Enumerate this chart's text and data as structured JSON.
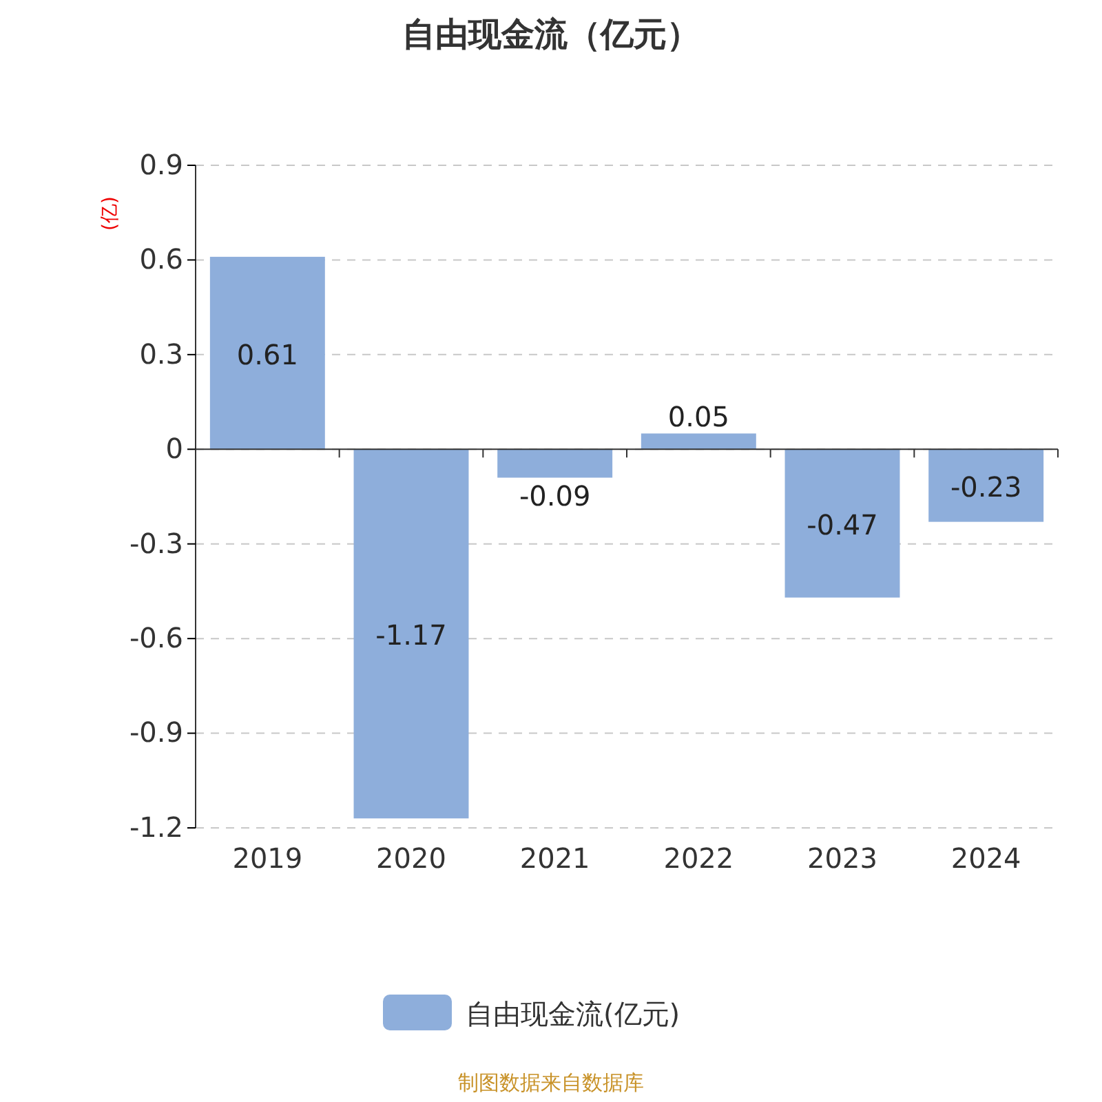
{
  "chart_data": {
    "type": "bar",
    "title": "自由现金流（亿元）",
    "ylabel": "(亿)",
    "categories": [
      "2019",
      "2020",
      "2021",
      "2022",
      "2023",
      "2024"
    ],
    "series": [
      {
        "name": "自由现金流(亿元)",
        "color": "#8eaedb",
        "values": [
          0.61,
          -1.17,
          -0.09,
          0.05,
          -0.47,
          -0.23
        ]
      }
    ],
    "ylim": [
      -1.2,
      0.9
    ],
    "yticks": [
      -1.2,
      -0.9,
      -0.6,
      -0.3,
      0,
      0.3,
      0.6,
      0.9
    ],
    "grid": "y",
    "legend": "bottom",
    "data_labels": true,
    "annotations": [
      "制图数据来自数据库"
    ]
  }
}
